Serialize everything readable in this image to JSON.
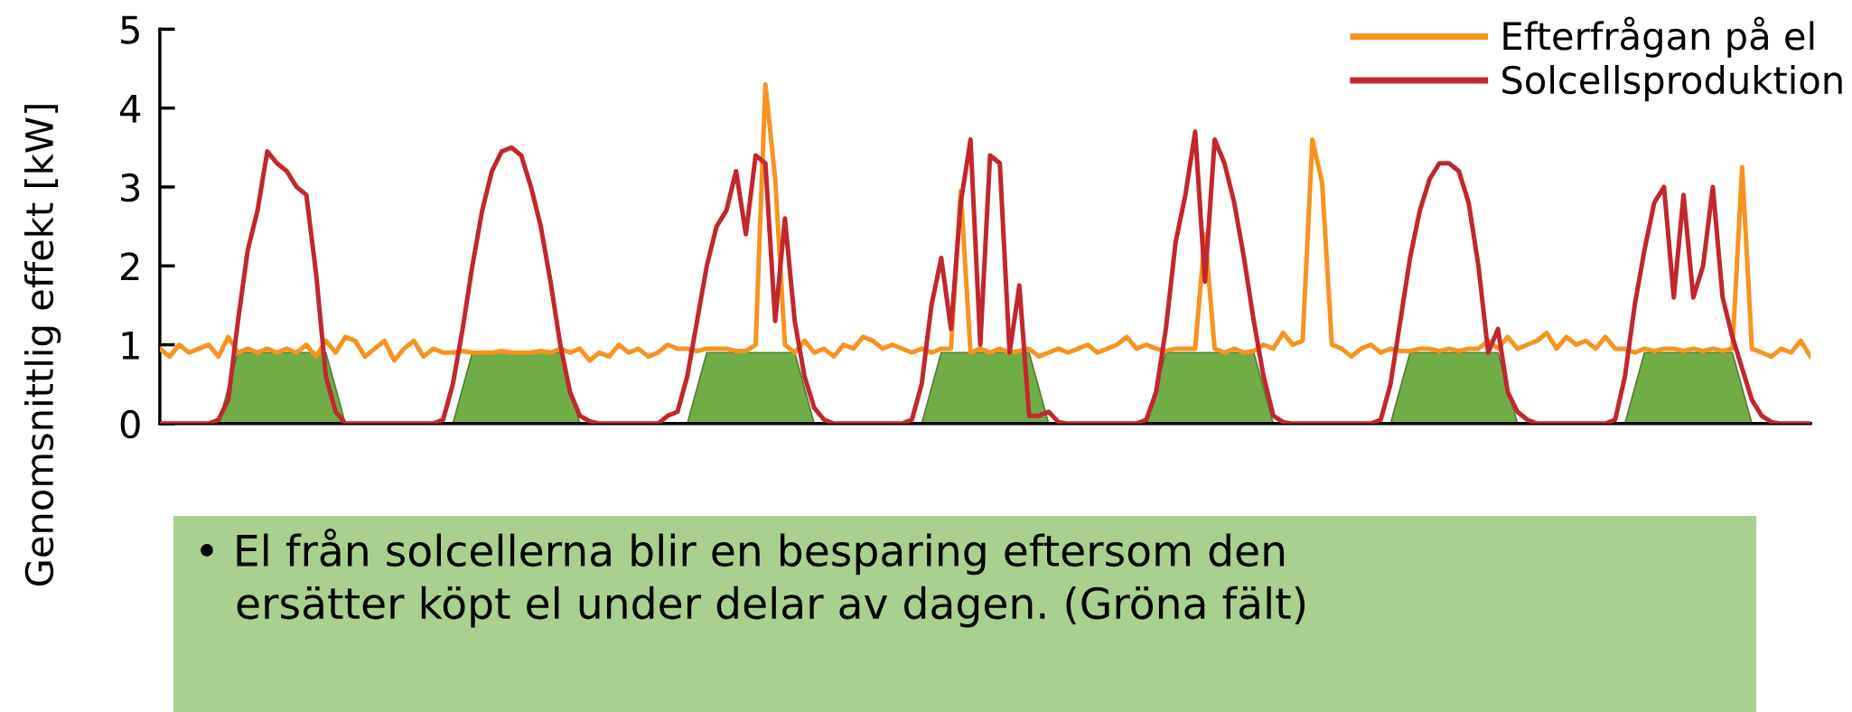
{
  "chart_data": {
    "type": "line",
    "ylabel": "Genomsnittlig effekt [kW]",
    "categories": [
      null,
      null,
      null,
      null,
      null,
      null,
      null,
      null,
      null,
      null,
      null,
      null,
      null,
      null,
      null,
      null,
      null,
      null,
      null,
      null,
      null,
      null,
      null,
      null,
      null,
      null,
      null,
      null,
      null,
      null,
      null,
      null,
      null,
      null,
      null,
      null,
      null,
      null,
      null,
      null,
      null,
      null,
      null,
      null,
      null,
      null,
      null,
      null,
      null,
      null,
      null,
      null,
      null,
      null,
      null,
      null,
      null,
      null,
      null,
      null,
      null,
      null,
      null,
      null,
      null,
      null,
      null,
      null,
      null,
      null,
      null,
      null,
      null,
      null,
      null,
      null,
      null,
      null,
      null,
      null,
      null,
      null,
      null,
      null,
      null,
      null,
      null,
      null,
      null,
      null,
      null,
      null,
      null,
      null,
      null,
      null,
      null,
      null,
      null,
      null,
      null,
      null,
      null,
      null,
      null,
      null,
      null,
      null,
      null,
      null,
      null,
      null,
      null,
      null,
      null,
      null,
      null,
      null,
      null,
      null,
      null,
      null,
      null,
      null,
      null,
      null,
      null,
      null,
      null,
      null,
      null,
      null,
      null,
      null,
      null,
      null,
      null,
      null,
      null,
      null,
      null,
      null,
      null,
      null,
      null,
      null,
      null,
      null,
      null,
      null,
      null,
      null,
      null,
      null,
      null,
      null,
      null,
      null,
      null,
      null,
      null,
      null,
      null,
      null,
      null,
      null,
      null,
      null,
      null,
      null
    ],
    "series": [
      {
        "type": "area",
        "color": "#70ad47",
        "values": [
          0,
          0,
          0,
          0,
          0,
          0,
          0,
          0.45,
          0.9,
          0.9,
          0.9,
          0.9,
          0.9,
          0.9,
          0.9,
          0.9,
          0.9,
          0.9,
          0.45,
          0,
          0,
          0,
          0,
          0,
          0,
          0,
          0,
          0,
          0,
          0,
          0,
          0.45,
          0.9,
          0.9,
          0.9,
          0.9,
          0.9,
          0.9,
          0.9,
          0.9,
          0.9,
          0.9,
          0.45,
          0,
          0,
          0,
          0,
          0,
          0,
          0,
          0,
          0,
          0,
          0,
          0,
          0.45,
          0.9,
          0.9,
          0.9,
          0.9,
          0.9,
          0.9,
          0.9,
          0.9,
          0.9,
          0.9,
          0.45,
          0,
          0,
          0,
          0,
          0,
          0,
          0,
          0,
          0,
          0,
          0,
          0,
          0.45,
          0.9,
          0.9,
          0.9,
          0.9,
          0.9,
          0.9,
          0.9,
          0.9,
          0.9,
          0.9,
          0.45,
          0,
          0,
          0,
          0,
          0,
          0,
          0,
          0,
          0,
          0,
          0,
          0.45,
          0.9,
          0.9,
          0.9,
          0.9,
          0.9,
          0.9,
          0.9,
          0.9,
          0.9,
          0.9,
          0.45,
          0,
          0,
          0,
          0,
          0,
          0,
          0,
          0,
          0,
          0,
          0,
          0,
          0,
          0.45,
          0.9,
          0.9,
          0.9,
          0.9,
          0.9,
          0.9,
          0.9,
          0.9,
          0.9,
          0.9,
          0.45,
          0,
          0,
          0,
          0,
          0,
          0,
          0,
          0,
          0,
          0,
          0,
          0,
          0.45,
          0.9,
          0.9,
          0.9,
          0.9,
          0.9,
          0.9,
          0.9,
          0.9,
          0.9,
          0.9,
          0.45,
          0,
          0,
          0,
          0,
          0,
          0,
          0
        ]
      },
      {
        "name": "Efterfrågan på el",
        "color": "#f7931e",
        "values": [
          0.95,
          0.85,
          1.0,
          0.9,
          0.95,
          1.0,
          0.85,
          1.1,
          0.9,
          0.95,
          0.9,
          0.95,
          0.9,
          0.95,
          0.9,
          1.0,
          0.85,
          1.05,
          0.9,
          1.1,
          1.05,
          0.85,
          0.95,
          1.05,
          0.8,
          0.95,
          1.05,
          0.85,
          0.95,
          0.9,
          0.9,
          0.92,
          0.9,
          0.9,
          0.9,
          0.92,
          0.9,
          0.9,
          0.9,
          0.92,
          0.9,
          0.95,
          0.9,
          0.95,
          0.8,
          0.9,
          0.85,
          1.0,
          0.9,
          0.95,
          0.85,
          0.9,
          1.0,
          0.95,
          0.95,
          0.92,
          0.95,
          0.95,
          0.95,
          0.92,
          0.92,
          1.0,
          4.3,
          3.1,
          1.0,
          0.9,
          1.05,
          0.9,
          0.95,
          0.85,
          1.0,
          0.95,
          1.1,
          1.05,
          0.95,
          1.0,
          0.95,
          0.9,
          0.95,
          0.9,
          0.95,
          0.95,
          2.95,
          0.9,
          0.95,
          0.9,
          0.95,
          0.9,
          0.92,
          0.95,
          0.85,
          0.9,
          0.95,
          0.9,
          0.95,
          1.0,
          0.9,
          0.95,
          1.0,
          1.1,
          0.95,
          1.0,
          0.95,
          0.92,
          0.95,
          0.95,
          0.95,
          2.4,
          0.95,
          0.9,
          0.95,
          0.9,
          0.92,
          1.0,
          0.95,
          1.15,
          1.0,
          1.05,
          3.6,
          3.05,
          1.0,
          0.95,
          0.85,
          0.95,
          1.0,
          0.9,
          0.95,
          0.92,
          0.92,
          0.95,
          0.95,
          0.92,
          0.95,
          0.92,
          0.95,
          0.95,
          1.05,
          0.95,
          1.1,
          0.95,
          1.0,
          1.05,
          1.15,
          0.95,
          1.1,
          1.0,
          1.05,
          0.95,
          1.1,
          0.95,
          0.95,
          0.9,
          0.95,
          0.92,
          0.95,
          0.95,
          0.92,
          0.95,
          0.92,
          0.95,
          0.92,
          0.95,
          3.25,
          0.95,
          0.9,
          0.85,
          0.95,
          0.9,
          1.05,
          0.85
        ]
      },
      {
        "name": "Solcellsproduktion",
        "color": "#c1272d",
        "values": [
          0,
          0,
          0,
          0,
          0,
          0,
          0.05,
          0.3,
          1.3,
          2.2,
          2.7,
          3.45,
          3.3,
          3.2,
          3.0,
          2.9,
          1.9,
          0.6,
          0.15,
          0,
          0,
          0,
          0,
          0,
          0,
          0,
          0,
          0,
          0,
          0.05,
          0.5,
          1.2,
          2.0,
          2.7,
          3.2,
          3.45,
          3.5,
          3.4,
          3.0,
          2.5,
          1.8,
          1.0,
          0.4,
          0.1,
          0.03,
          0,
          0,
          0,
          0,
          0,
          0,
          0,
          0.1,
          0.15,
          0.6,
          1.3,
          2.0,
          2.5,
          2.7,
          3.2,
          2.4,
          3.4,
          3.3,
          1.3,
          2.6,
          1.3,
          0.6,
          0.2,
          0.05,
          0,
          0,
          0,
          0,
          0,
          0,
          0,
          0,
          0.05,
          0.5,
          1.5,
          2.1,
          1.2,
          2.8,
          3.6,
          1.0,
          3.4,
          3.3,
          0.9,
          1.75,
          0.1,
          0.1,
          0.15,
          0.02,
          0,
          0,
          0,
          0,
          0,
          0,
          0,
          0,
          0.05,
          0.4,
          1.2,
          2.3,
          2.9,
          3.7,
          1.8,
          3.6,
          3.3,
          2.8,
          2.1,
          1.3,
          0.6,
          0.1,
          0.02,
          0,
          0,
          0,
          0,
          0,
          0,
          0,
          0,
          0,
          0.05,
          0.5,
          1.3,
          2.1,
          2.7,
          3.1,
          3.3,
          3.3,
          3.2,
          2.8,
          2.0,
          0.9,
          1.2,
          0.4,
          0.15,
          0.05,
          0,
          0,
          0,
          0,
          0,
          0,
          0,
          0,
          0.05,
          0.6,
          1.5,
          2.2,
          2.8,
          3.0,
          1.6,
          2.9,
          1.6,
          2.0,
          3.0,
          1.6,
          1.1,
          0.7,
          0.3,
          0.1,
          0.02,
          0,
          0,
          0,
          0
        ]
      }
    ],
    "ylim": [
      0,
      5
    ],
    "yticks": [
      0,
      1,
      2,
      3,
      4,
      5
    ],
    "tick_labels": "y",
    "legend": "top right",
    "grid": false,
    "annotations": [
      "• El från solcellerna blir en besparing eftersom den\n   ersätter köpt el under delar av dagen. (Gröna fält)"
    ]
  }
}
